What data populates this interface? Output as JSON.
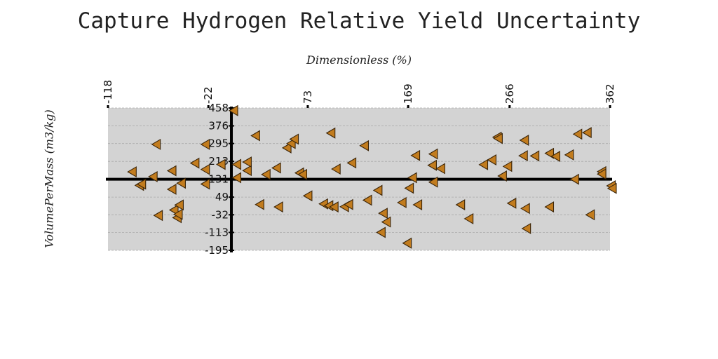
{
  "chart_data": {
    "type": "scatter",
    "title": "Capture Hydrogen Relative Yield Uncertainty",
    "xlabel": "Dimensionless (%)",
    "ylabel": "VolumePerMass (m3/kg)",
    "xlim": [
      -118,
      362
    ],
    "ylim": [
      -195,
      458
    ],
    "x_ticks": [
      "-118",
      "-22",
      "73",
      "169",
      "266",
      "362"
    ],
    "y_ticks": [
      "458",
      "376",
      "295",
      "213",
      "131",
      "49",
      "-32",
      "-113",
      "-195"
    ],
    "grid": true,
    "axes_cross_at": [
      0,
      131
    ],
    "marker": "triangle-left",
    "marker_color": "#c27c1e",
    "plot_background": "#d3d3d3",
    "series": [
      {
        "points": [
          [
            -95,
            165
          ],
          [
            -88,
            103
          ],
          [
            -86,
            109
          ],
          [
            -75,
            143
          ],
          [
            -72,
            291
          ],
          [
            -70,
            -35
          ],
          [
            -57,
            170
          ],
          [
            -57,
            85
          ],
          [
            -55,
            -10
          ],
          [
            -52,
            -45
          ],
          [
            -51,
            -30
          ],
          [
            -50,
            13
          ],
          [
            -48,
            113
          ],
          [
            -35,
            205
          ],
          [
            -25,
            291
          ],
          [
            -25,
            176
          ],
          [
            -25,
            109
          ],
          [
            -10,
            199
          ],
          [
            2,
            446
          ],
          [
            5,
            199
          ],
          [
            5,
            138
          ],
          [
            15,
            171
          ],
          [
            15,
            210
          ],
          [
            23,
            331
          ],
          [
            27,
            15
          ],
          [
            33,
            153
          ],
          [
            43,
            183
          ],
          [
            45,
            4
          ],
          [
            53,
            275
          ],
          [
            57,
            295
          ],
          [
            60,
            315
          ],
          [
            65,
            160
          ],
          [
            68,
            153
          ],
          [
            73,
            55
          ],
          [
            88,
            18
          ],
          [
            93,
            10
          ],
          [
            95,
            343
          ],
          [
            98,
            4
          ],
          [
            100,
            178
          ],
          [
            108,
            5
          ],
          [
            112,
            15
          ],
          [
            115,
            206
          ],
          [
            127,
            285
          ],
          [
            130,
            35
          ],
          [
            140,
            80
          ],
          [
            143,
            -113
          ],
          [
            145,
            -25
          ],
          [
            148,
            -65
          ],
          [
            163,
            24
          ],
          [
            168,
            -162
          ],
          [
            170,
            90
          ],
          [
            173,
            138
          ],
          [
            176,
            240
          ],
          [
            178,
            14
          ],
          [
            192,
            195
          ],
          [
            193,
            247
          ],
          [
            193,
            118
          ],
          [
            200,
            180
          ],
          [
            219,
            14
          ],
          [
            227,
            -50
          ],
          [
            241,
            198
          ],
          [
            249,
            220
          ],
          [
            254,
            324
          ],
          [
            255,
            318
          ],
          [
            259,
            146
          ],
          [
            264,
            190
          ],
          [
            268,
            21
          ],
          [
            279,
            239
          ],
          [
            280,
            310
          ],
          [
            281,
            -3
          ],
          [
            282,
            -95
          ],
          [
            290,
            238
          ],
          [
            304,
            250
          ],
          [
            304,
            4
          ],
          [
            310,
            236
          ],
          [
            323,
            243
          ],
          [
            328,
            131
          ],
          [
            331,
            338
          ],
          [
            340,
            345
          ],
          [
            343,
            -32
          ],
          [
            354,
            166
          ],
          [
            354,
            155
          ],
          [
            363,
            101
          ],
          [
            364,
            89
          ]
        ]
      }
    ]
  }
}
